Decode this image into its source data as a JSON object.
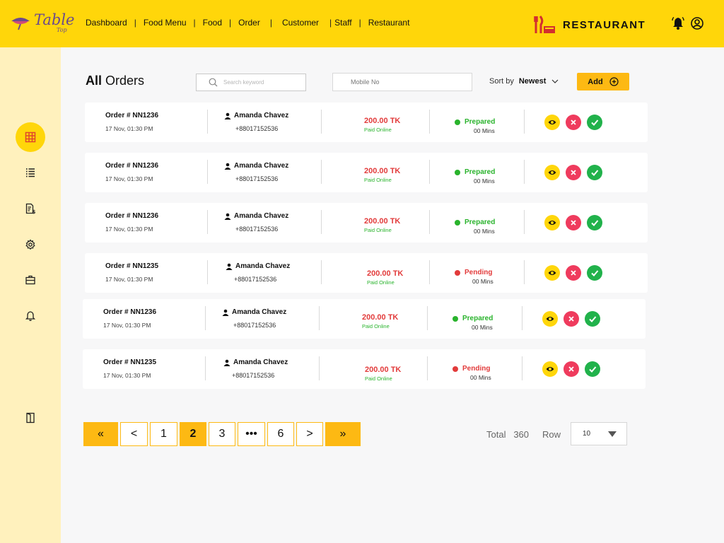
{
  "brand": {
    "name": "Table",
    "sub": "Top"
  },
  "nav": [
    "Dashboard",
    "Food Menu",
    "Food",
    "Order",
    "Customer",
    "Staff",
    "Restaurant"
  ],
  "restaurant_title": "RESTAURANT",
  "page_title": {
    "bold": "All",
    "rest": " Orders"
  },
  "search": {
    "placeholder": "Search keyword"
  },
  "mobile": {
    "placeholder": "Mobile No"
  },
  "sort": {
    "label": "Sort by",
    "value": "Newest"
  },
  "add_label": "Add",
  "orders": [
    {
      "number": "Order # NN1236",
      "date": "17 Nov, 01:30 PM",
      "customer": "Amanda Chavez",
      "phone": "+88017152536",
      "amount": "200.00 TK",
      "payment": "Paid Online",
      "status": "Prepared",
      "mins": "00 Mins"
    },
    {
      "number": "Order # NN1236",
      "date": "17 Nov, 01:30 PM",
      "customer": "Amanda Chavez",
      "phone": "+88017152536",
      "amount": "200.00 TK",
      "payment": "Paid Online",
      "status": "Prepared",
      "mins": "00 Mins"
    },
    {
      "number": "Order # NN1236",
      "date": "17 Nov, 01:30 PM",
      "customer": "Amanda Chavez",
      "phone": "+88017152536",
      "amount": "200.00 TK",
      "payment": "Paid Online",
      "status": "Prepared",
      "mins": "00 Mins"
    },
    {
      "number": "Order # NN1235",
      "date": "17 Nov, 01:30 PM",
      "customer": "Amanda Chavez",
      "phone": "+88017152536",
      "amount": "200.00 TK",
      "payment": "Paid Online",
      "status": "Pending",
      "mins": "00 Mins"
    },
    {
      "number": "Order # NN1236",
      "date": "17 Nov, 01:30 PM",
      "customer": "Amanda Chavez",
      "phone": "+88017152536",
      "amount": "200.00 TK",
      "payment": "Paid Online",
      "status": "Prepared",
      "mins": "00 Mins"
    },
    {
      "number": "Order # NN1235",
      "date": "17 Nov, 01:30 PM",
      "customer": "Amanda Chavez",
      "phone": "+88017152536",
      "amount": "200.00 TK",
      "payment": "Paid Online",
      "status": "Pending",
      "mins": "00 Mins"
    }
  ],
  "pagination": {
    "first": "«",
    "prev": "<",
    "pages": [
      "1",
      "2",
      "3",
      "•••",
      "6"
    ],
    "active": "2",
    "next": ">",
    "last": "»"
  },
  "total": {
    "label": "Total",
    "value": "360"
  },
  "rows": {
    "label": "Row",
    "value": "10"
  },
  "colors": {
    "accent": "#ffd60a",
    "button": "#fdb913",
    "sidebar": "#fff1bd",
    "prepared": "#29b32c",
    "pending": "#e23b3b",
    "amount": "#e23b3b"
  },
  "icons": {
    "sidebar": [
      "grid-icon",
      "list-icon",
      "invoice-icon",
      "gear-icon",
      "briefcase-icon",
      "bell-icon",
      "door-icon"
    ],
    "actions": [
      "eye-icon",
      "close-icon",
      "check-icon"
    ]
  }
}
